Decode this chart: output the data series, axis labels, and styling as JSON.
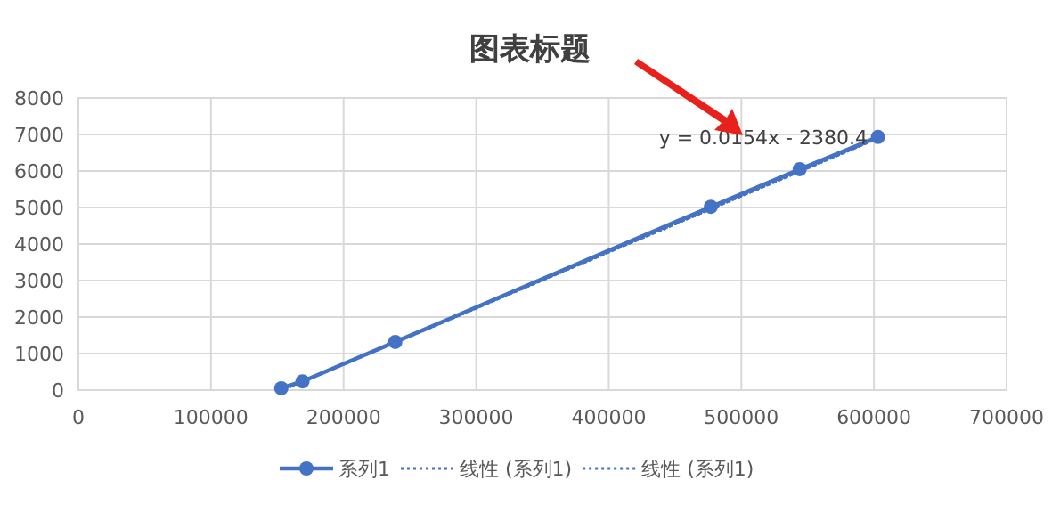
{
  "chart_data": {
    "type": "scatter",
    "title": "图表标题",
    "annotations": [
      "y = 0.0154x - 2380.4"
    ],
    "xlim": [
      0,
      700000
    ],
    "xticks": [
      0,
      100000,
      200000,
      300000,
      400000,
      500000,
      600000,
      700000
    ],
    "ylim": [
      0,
      8000
    ],
    "yticks": [
      0,
      1000,
      2000,
      3000,
      4000,
      5000,
      6000,
      7000,
      8000
    ],
    "grid": true,
    "legend": "bottom",
    "series": [
      {
        "name": "系列1",
        "type": "line",
        "color": "#4472c4",
        "marker": "circle",
        "line_style": "solid",
        "x": [
          153000,
          169000,
          239000,
          477000,
          544000,
          603000
        ],
        "values": [
          50,
          240,
          1320,
          5020,
          6050,
          6930
        ]
      },
      {
        "name": "线性 (系列1)",
        "type": "line",
        "color": "#4472c4",
        "marker": "none",
        "line_style": "dotted",
        "x": [
          160000,
          603000
        ],
        "values": [
          100,
          6900
        ]
      },
      {
        "name": "线性 (系列1)",
        "type": "line",
        "color": "#4472c4",
        "marker": "none",
        "line_style": "dotted",
        "x": [
          160000,
          603000
        ],
        "values": [
          100,
          6900
        ]
      }
    ]
  }
}
